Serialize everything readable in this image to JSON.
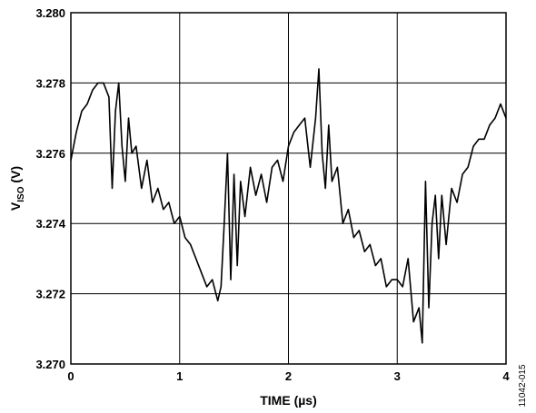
{
  "chart_data": {
    "type": "line",
    "title": "",
    "xlabel": "TIME (µs)",
    "ylabel": {
      "main": "V",
      "sub": "ISO",
      "unit": " (V)"
    },
    "xlim": [
      0,
      4
    ],
    "ylim": [
      3.27,
      3.28
    ],
    "xticks": [
      0,
      1,
      2,
      3,
      4
    ],
    "xtick_labels": [
      "0",
      "1",
      "2",
      "3",
      "4"
    ],
    "yticks": [
      3.27,
      3.272,
      3.274,
      3.276,
      3.278,
      3.28
    ],
    "ytick_labels": [
      "3.270",
      "3.272",
      "3.274",
      "3.276",
      "3.278",
      "3.280"
    ],
    "grid": true,
    "figure_id": "11042-015",
    "series": [
      {
        "color": "#000000",
        "x": [
          0.0,
          0.05,
          0.1,
          0.15,
          0.2,
          0.25,
          0.3,
          0.35,
          0.38,
          0.41,
          0.44,
          0.47,
          0.5,
          0.53,
          0.56,
          0.6,
          0.65,
          0.7,
          0.75,
          0.8,
          0.85,
          0.9,
          0.95,
          1.0,
          1.05,
          1.1,
          1.15,
          1.2,
          1.25,
          1.3,
          1.35,
          1.38,
          1.41,
          1.44,
          1.47,
          1.5,
          1.53,
          1.56,
          1.6,
          1.65,
          1.7,
          1.75,
          1.8,
          1.85,
          1.9,
          1.95,
          2.0,
          2.05,
          2.1,
          2.15,
          2.2,
          2.25,
          2.28,
          2.31,
          2.34,
          2.37,
          2.4,
          2.45,
          2.5,
          2.55,
          2.6,
          2.65,
          2.7,
          2.75,
          2.8,
          2.85,
          2.9,
          2.95,
          3.0,
          3.05,
          3.1,
          3.15,
          3.2,
          3.23,
          3.26,
          3.29,
          3.32,
          3.35,
          3.38,
          3.41,
          3.45,
          3.5,
          3.55,
          3.6,
          3.65,
          3.7,
          3.75,
          3.8,
          3.85,
          3.9,
          3.95,
          4.0
        ],
        "y": [
          3.2758,
          3.2766,
          3.2772,
          3.2774,
          3.2778,
          3.278,
          3.278,
          3.2776,
          3.275,
          3.2772,
          3.278,
          3.2762,
          3.2752,
          3.277,
          3.276,
          3.2762,
          3.275,
          3.2758,
          3.2746,
          3.275,
          3.2744,
          3.2746,
          3.274,
          3.2742,
          3.2736,
          3.2734,
          3.273,
          3.2726,
          3.2722,
          3.2724,
          3.2718,
          3.2722,
          3.274,
          3.276,
          3.2724,
          3.2754,
          3.2728,
          3.2752,
          3.2742,
          3.2756,
          3.2748,
          3.2754,
          3.2746,
          3.2756,
          3.2758,
          3.2752,
          3.2762,
          3.2766,
          3.2768,
          3.277,
          3.2756,
          3.277,
          3.2784,
          3.276,
          3.275,
          3.2768,
          3.2752,
          3.2756,
          3.274,
          3.2744,
          3.2736,
          3.2738,
          3.2732,
          3.2734,
          3.2728,
          3.273,
          3.2722,
          3.2724,
          3.2724,
          3.2722,
          3.273,
          3.2712,
          3.2716,
          3.2706,
          3.2752,
          3.2716,
          3.274,
          3.2748,
          3.273,
          3.2748,
          3.2734,
          3.275,
          3.2746,
          3.2754,
          3.2756,
          3.2762,
          3.2764,
          3.2764,
          3.2768,
          3.277,
          3.2774,
          3.277
        ]
      }
    ]
  }
}
